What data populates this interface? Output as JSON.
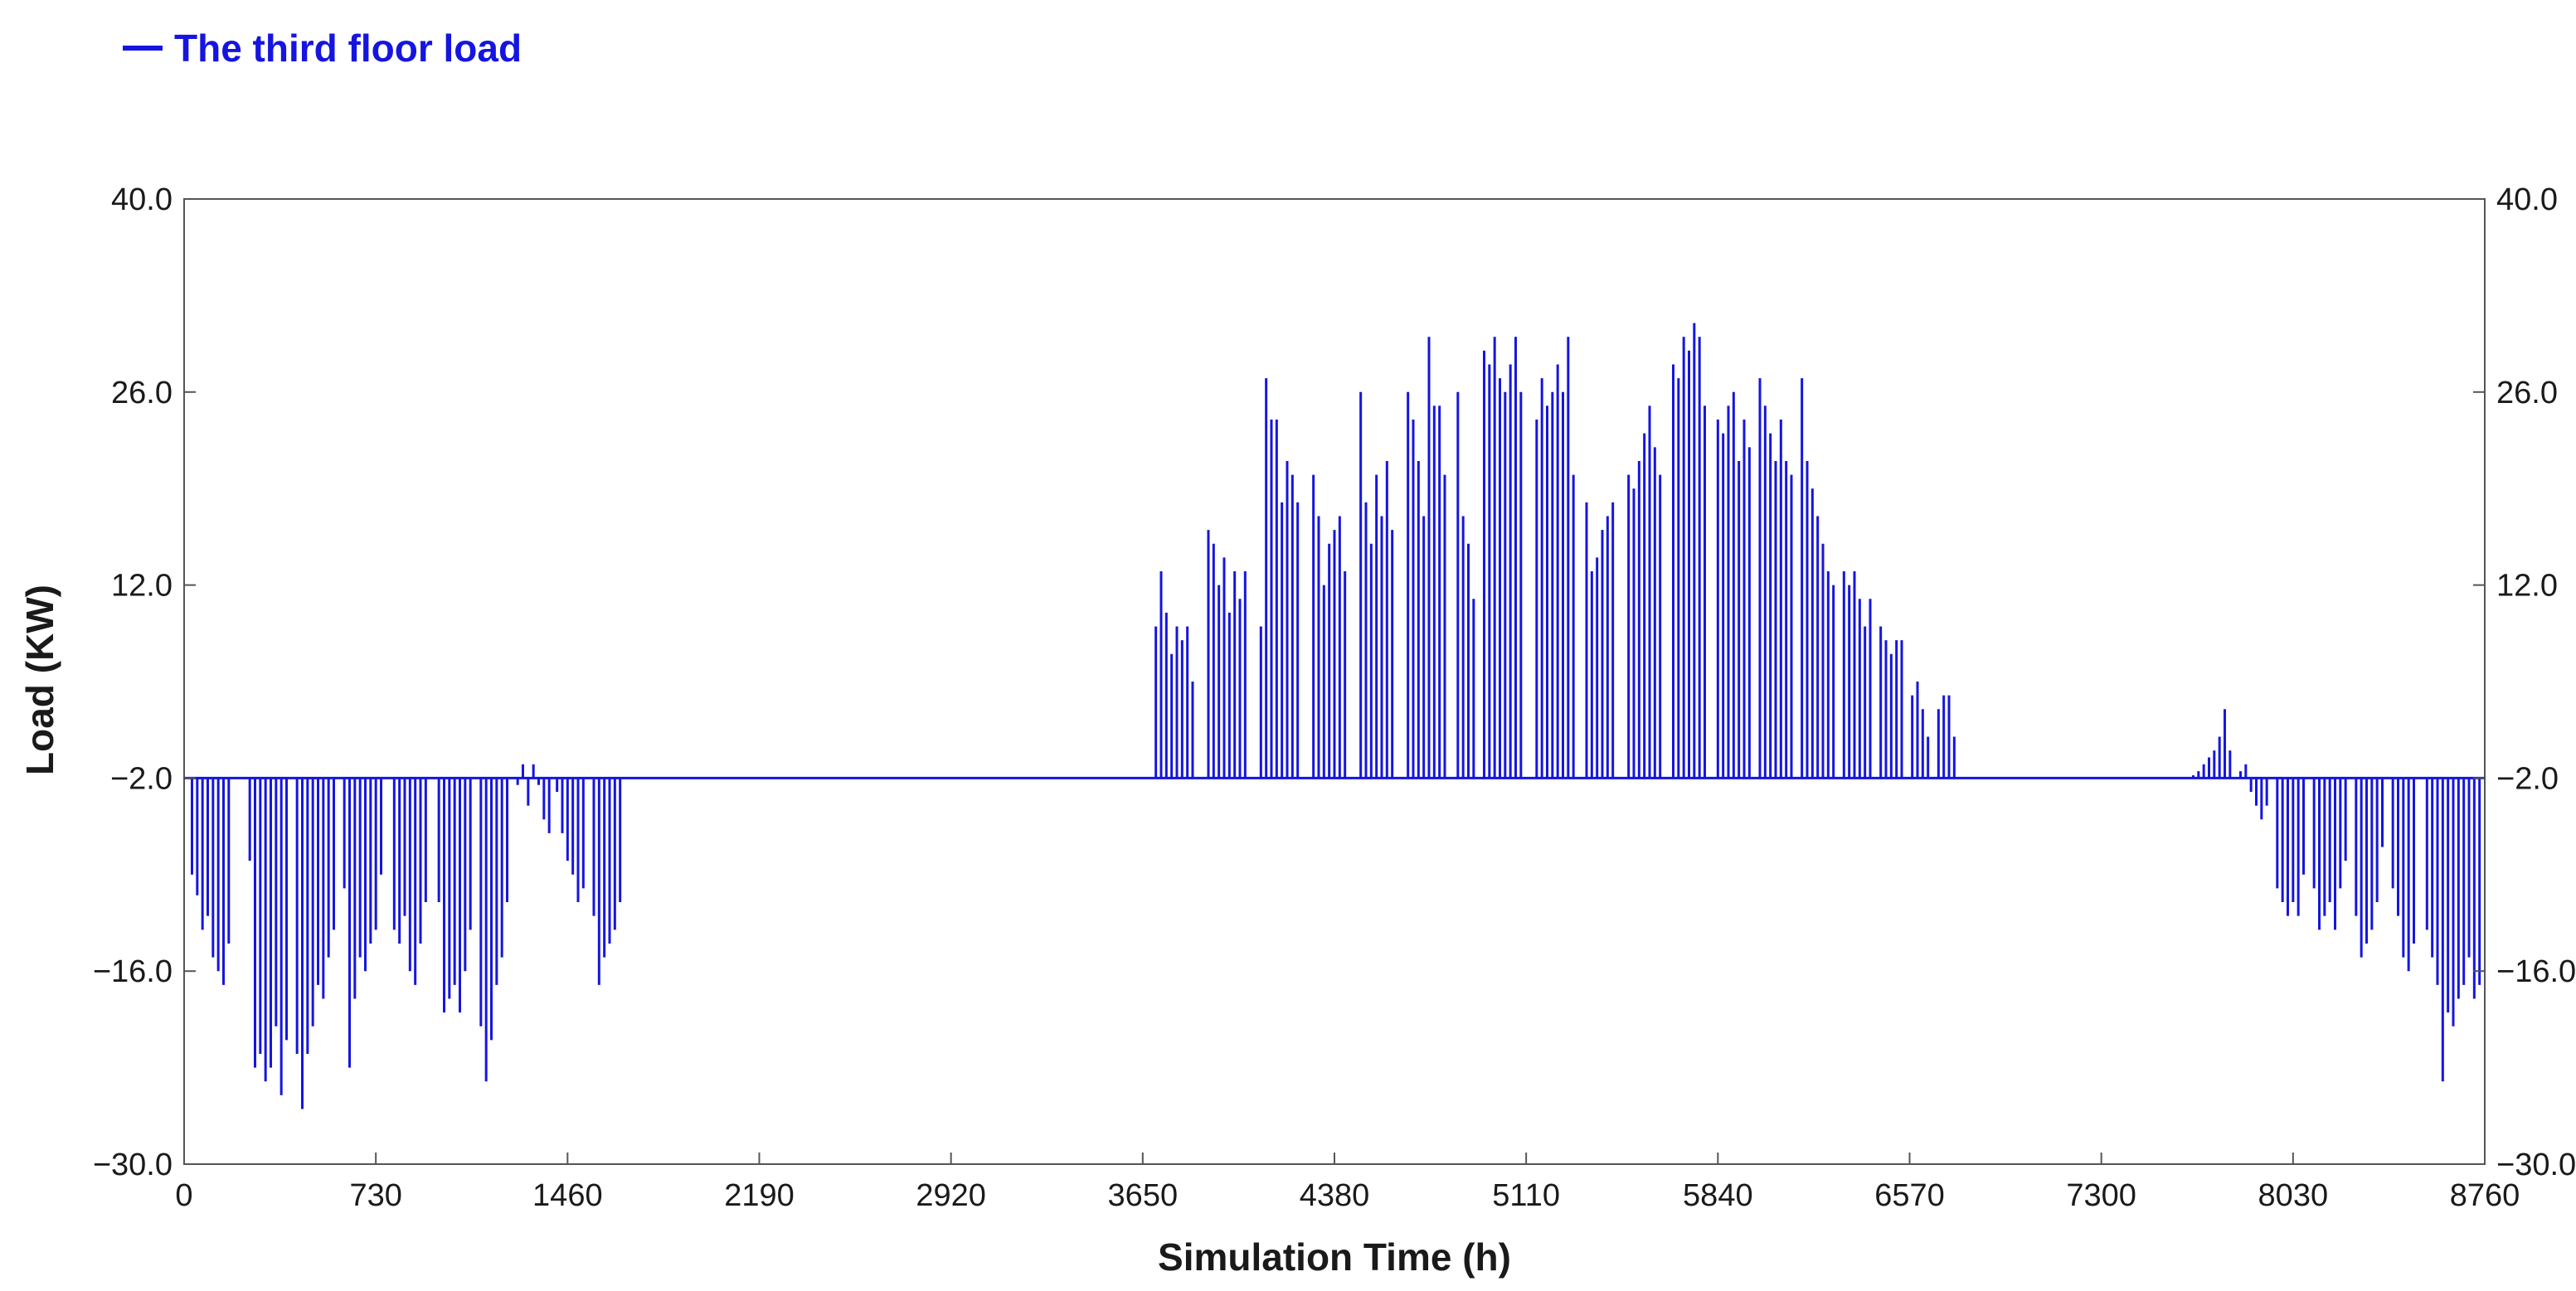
{
  "chart_data": {
    "type": "bar",
    "legend": {
      "entries": [
        "The third floor load"
      ],
      "placement": "top-left"
    },
    "xlabel": "Simulation Time  (h)",
    "ylabel": "Load  (KW)",
    "xlim": [
      0,
      8760
    ],
    "ylim": [
      -30,
      40
    ],
    "baseline": -2.0,
    "x_ticks": [
      "0",
      "730",
      "1460",
      "2190",
      "2920",
      "3650",
      "4380",
      "5110",
      "5840",
      "6570",
      "7300",
      "8030",
      "8760"
    ],
    "x_tick_values": [
      0,
      730,
      1460,
      2190,
      2920,
      3650,
      4380,
      5110,
      5840,
      6570,
      7300,
      8030,
      8760
    ],
    "y_ticks": [
      "40.0",
      "26.0",
      "12.0",
      "−2.0",
      "−16.0",
      "−30.0"
    ],
    "y_tick_values": [
      40,
      26,
      12,
      -2,
      -16,
      -30
    ],
    "grid": false,
    "color": "#1515e0",
    "series": [
      {
        "name": "The third floor load",
        "points": [
          [
            30,
            -9
          ],
          [
            50,
            -10.5
          ],
          [
            70,
            -13
          ],
          [
            90,
            -12
          ],
          [
            110,
            -15
          ],
          [
            130,
            -16
          ],
          [
            150,
            -17
          ],
          [
            170,
            -14
          ],
          [
            250,
            -8
          ],
          [
            270,
            -23
          ],
          [
            290,
            -22
          ],
          [
            310,
            -24
          ],
          [
            330,
            -23
          ],
          [
            350,
            -20
          ],
          [
            370,
            -25
          ],
          [
            390,
            -21
          ],
          [
            430,
            -22
          ],
          [
            450,
            -26
          ],
          [
            470,
            -22
          ],
          [
            490,
            -20
          ],
          [
            510,
            -17
          ],
          [
            530,
            -18
          ],
          [
            550,
            -15
          ],
          [
            570,
            -13
          ],
          [
            610,
            -10
          ],
          [
            630,
            -23
          ],
          [
            650,
            -18
          ],
          [
            670,
            -15
          ],
          [
            690,
            -16
          ],
          [
            710,
            -14
          ],
          [
            730,
            -13
          ],
          [
            750,
            -9
          ],
          [
            800,
            -13
          ],
          [
            820,
            -14
          ],
          [
            840,
            -12
          ],
          [
            860,
            -16
          ],
          [
            880,
            -17
          ],
          [
            900,
            -14
          ],
          [
            920,
            -11
          ],
          [
            970,
            -11
          ],
          [
            990,
            -19
          ],
          [
            1010,
            -18
          ],
          [
            1030,
            -17
          ],
          [
            1050,
            -19
          ],
          [
            1070,
            -16
          ],
          [
            1090,
            -13
          ],
          [
            1130,
            -20
          ],
          [
            1150,
            -24
          ],
          [
            1170,
            -21
          ],
          [
            1190,
            -17
          ],
          [
            1210,
            -15
          ],
          [
            1230,
            -11
          ],
          [
            1270,
            -2.5
          ],
          [
            1290,
            -1
          ],
          [
            1310,
            -4
          ],
          [
            1330,
            -1
          ],
          [
            1350,
            -2.5
          ],
          [
            1370,
            -5
          ],
          [
            1390,
            -6
          ],
          [
            1420,
            -3
          ],
          [
            1440,
            -6
          ],
          [
            1460,
            -8
          ],
          [
            1480,
            -9
          ],
          [
            1500,
            -11
          ],
          [
            1520,
            -10
          ],
          [
            1560,
            -12
          ],
          [
            1580,
            -17
          ],
          [
            1600,
            -15
          ],
          [
            1620,
            -14
          ],
          [
            1640,
            -13
          ],
          [
            1660,
            -11
          ],
          [
            3700,
            9
          ],
          [
            3720,
            13
          ],
          [
            3740,
            10
          ],
          [
            3760,
            7
          ],
          [
            3780,
            9
          ],
          [
            3800,
            8
          ],
          [
            3820,
            9
          ],
          [
            3840,
            5
          ],
          [
            3900,
            16
          ],
          [
            3920,
            15
          ],
          [
            3940,
            12
          ],
          [
            3960,
            14
          ],
          [
            3980,
            10
          ],
          [
            4000,
            13
          ],
          [
            4020,
            11
          ],
          [
            4040,
            13
          ],
          [
            4100,
            9
          ],
          [
            4120,
            27
          ],
          [
            4140,
            24
          ],
          [
            4160,
            24
          ],
          [
            4180,
            18
          ],
          [
            4200,
            21
          ],
          [
            4220,
            20
          ],
          [
            4240,
            18
          ],
          [
            4300,
            20
          ],
          [
            4320,
            17
          ],
          [
            4340,
            12
          ],
          [
            4360,
            15
          ],
          [
            4380,
            16
          ],
          [
            4400,
            17
          ],
          [
            4420,
            13
          ],
          [
            4480,
            26
          ],
          [
            4500,
            18
          ],
          [
            4520,
            15
          ],
          [
            4540,
            20
          ],
          [
            4560,
            17
          ],
          [
            4580,
            21
          ],
          [
            4600,
            16
          ],
          [
            4660,
            26
          ],
          [
            4680,
            24
          ],
          [
            4700,
            21
          ],
          [
            4720,
            17
          ],
          [
            4740,
            30
          ],
          [
            4760,
            25
          ],
          [
            4780,
            25
          ],
          [
            4800,
            20
          ],
          [
            4850,
            26
          ],
          [
            4870,
            17
          ],
          [
            4890,
            15
          ],
          [
            4910,
            11
          ],
          [
            4950,
            29
          ],
          [
            4970,
            28
          ],
          [
            4990,
            30
          ],
          [
            5010,
            27
          ],
          [
            5030,
            26
          ],
          [
            5050,
            28
          ],
          [
            5070,
            30
          ],
          [
            5090,
            26
          ],
          [
            5150,
            24
          ],
          [
            5170,
            27
          ],
          [
            5190,
            25
          ],
          [
            5210,
            26
          ],
          [
            5230,
            28
          ],
          [
            5250,
            26
          ],
          [
            5270,
            30
          ],
          [
            5290,
            20
          ],
          [
            5340,
            18
          ],
          [
            5360,
            13
          ],
          [
            5380,
            14
          ],
          [
            5400,
            16
          ],
          [
            5420,
            17
          ],
          [
            5440,
            18
          ],
          [
            5500,
            20
          ],
          [
            5520,
            19
          ],
          [
            5540,
            21
          ],
          [
            5560,
            23
          ],
          [
            5580,
            25
          ],
          [
            5600,
            22
          ],
          [
            5620,
            20
          ],
          [
            5670,
            28
          ],
          [
            5690,
            27
          ],
          [
            5710,
            30
          ],
          [
            5730,
            29
          ],
          [
            5750,
            31
          ],
          [
            5770,
            30
          ],
          [
            5790,
            25
          ],
          [
            5840,
            24
          ],
          [
            5860,
            23
          ],
          [
            5880,
            25
          ],
          [
            5900,
            26
          ],
          [
            5920,
            21
          ],
          [
            5940,
            24
          ],
          [
            5960,
            22
          ],
          [
            6000,
            27
          ],
          [
            6020,
            25
          ],
          [
            6040,
            23
          ],
          [
            6060,
            21
          ],
          [
            6080,
            24
          ],
          [
            6100,
            21
          ],
          [
            6120,
            20
          ],
          [
            6160,
            27
          ],
          [
            6180,
            21
          ],
          [
            6200,
            19
          ],
          [
            6220,
            17
          ],
          [
            6240,
            15
          ],
          [
            6260,
            13
          ],
          [
            6280,
            12
          ],
          [
            6320,
            13
          ],
          [
            6340,
            12
          ],
          [
            6360,
            13
          ],
          [
            6380,
            11
          ],
          [
            6400,
            9
          ],
          [
            6420,
            11
          ],
          [
            6460,
            9
          ],
          [
            6480,
            8
          ],
          [
            6500,
            7
          ],
          [
            6520,
            8
          ],
          [
            6540,
            8
          ],
          [
            6580,
            4
          ],
          [
            6600,
            5
          ],
          [
            6620,
            3
          ],
          [
            6640,
            1
          ],
          [
            6680,
            3
          ],
          [
            6700,
            4
          ],
          [
            6720,
            4
          ],
          [
            6740,
            1
          ],
          [
            7650,
            -1.8
          ],
          [
            7670,
            -1.5
          ],
          [
            7690,
            -1
          ],
          [
            7710,
            -0.5
          ],
          [
            7730,
            0
          ],
          [
            7750,
            1
          ],
          [
            7770,
            3
          ],
          [
            7790,
            0
          ],
          [
            7830,
            -1.5
          ],
          [
            7850,
            -1
          ],
          [
            7870,
            -3
          ],
          [
            7890,
            -4
          ],
          [
            7910,
            -5
          ],
          [
            7930,
            -4
          ],
          [
            7970,
            -10
          ],
          [
            7990,
            -11
          ],
          [
            8010,
            -12
          ],
          [
            8030,
            -11
          ],
          [
            8050,
            -12
          ],
          [
            8070,
            -9
          ],
          [
            8110,
            -10
          ],
          [
            8130,
            -13
          ],
          [
            8150,
            -12
          ],
          [
            8170,
            -11
          ],
          [
            8190,
            -13
          ],
          [
            8210,
            -10
          ],
          [
            8230,
            -8
          ],
          [
            8270,
            -12
          ],
          [
            8290,
            -15
          ],
          [
            8310,
            -14
          ],
          [
            8330,
            -13
          ],
          [
            8350,
            -11
          ],
          [
            8370,
            -7
          ],
          [
            8410,
            -10
          ],
          [
            8430,
            -12
          ],
          [
            8450,
            -15
          ],
          [
            8470,
            -16
          ],
          [
            8490,
            -14
          ],
          [
            8540,
            -13
          ],
          [
            8560,
            -15
          ],
          [
            8580,
            -17
          ],
          [
            8600,
            -24
          ],
          [
            8620,
            -19
          ],
          [
            8640,
            -20
          ],
          [
            8660,
            -18
          ],
          [
            8680,
            -17
          ],
          [
            8700,
            -15
          ],
          [
            8720,
            -18
          ],
          [
            8740,
            -17
          ]
        ]
      }
    ]
  }
}
